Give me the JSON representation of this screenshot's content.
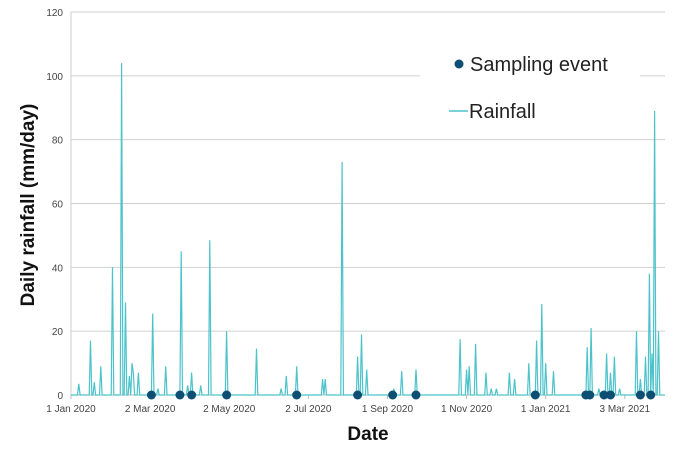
{
  "chart_data": {
    "type": "line",
    "xlabel": "Date",
    "ylabel": "Daily rainfall (mm/day)",
    "xlim": [
      "2020-01-01",
      "2021-04-03"
    ],
    "ylim": [
      0,
      120
    ],
    "y_ticks": [
      0,
      20,
      40,
      60,
      80,
      100,
      120
    ],
    "x_ticks": [
      {
        "date": "2020-01-01",
        "label": "1 Jan 2020"
      },
      {
        "date": "2020-03-02",
        "label": "2 Mar 2020"
      },
      {
        "date": "2020-05-02",
        "label": "2 May 2020"
      },
      {
        "date": "2020-07-02",
        "label": "2 Jul 2020"
      },
      {
        "date": "2020-09-01",
        "label": "1 Sep 2020"
      },
      {
        "date": "2020-11-01",
        "label": "1 Nov 2020"
      },
      {
        "date": "2021-01-01",
        "label": "1 Jan 2021"
      },
      {
        "date": "2021-03-03",
        "label": "3 Mar 2021"
      }
    ],
    "grid": "horizontal",
    "legend_position": "top-right",
    "series": [
      {
        "name": "Rainfall",
        "kind": "line",
        "color": "#4cc3cb",
        "points": [
          [
            "2020-01-07",
            3.5
          ],
          [
            "2020-01-16",
            17
          ],
          [
            "2020-01-19",
            4
          ],
          [
            "2020-01-24",
            9
          ],
          [
            "2020-02-02",
            40
          ],
          [
            "2020-02-09",
            104
          ],
          [
            "2020-02-12",
            29
          ],
          [
            "2020-02-15",
            6
          ],
          [
            "2020-02-17",
            10
          ],
          [
            "2020-02-18",
            7
          ],
          [
            "2020-02-22",
            7
          ],
          [
            "2020-03-04",
            25.5
          ],
          [
            "2020-03-08",
            2
          ],
          [
            "2020-03-14",
            9
          ],
          [
            "2020-03-26",
            45
          ],
          [
            "2020-03-31",
            3
          ],
          [
            "2020-04-03",
            7
          ],
          [
            "2020-04-10",
            3
          ],
          [
            "2020-04-17",
            48.5
          ],
          [
            "2020-04-30",
            20
          ],
          [
            "2020-05-23",
            14.5
          ],
          [
            "2020-06-11",
            2
          ],
          [
            "2020-06-15",
            6
          ],
          [
            "2020-06-23",
            9
          ],
          [
            "2020-07-13",
            5
          ],
          [
            "2020-07-15",
            5
          ],
          [
            "2020-07-28",
            73
          ],
          [
            "2020-08-09",
            12
          ],
          [
            "2020-08-12",
            19
          ],
          [
            "2020-08-16",
            8
          ],
          [
            "2020-09-06",
            2
          ],
          [
            "2020-09-12",
            7.5
          ],
          [
            "2020-09-23",
            8
          ],
          [
            "2020-10-27",
            17.5
          ],
          [
            "2020-11-01",
            8
          ],
          [
            "2020-11-03",
            9
          ],
          [
            "2020-11-08",
            16
          ],
          [
            "2020-11-16",
            7
          ],
          [
            "2020-11-20",
            2
          ],
          [
            "2020-11-24",
            2
          ],
          [
            "2020-12-04",
            7
          ],
          [
            "2020-12-08",
            5
          ],
          [
            "2020-12-19",
            10
          ],
          [
            "2020-12-25",
            17
          ],
          [
            "2020-12-29",
            28.5
          ],
          [
            "2021-01-01",
            10
          ],
          [
            "2021-01-07",
            7.5
          ],
          [
            "2021-02-02",
            15
          ],
          [
            "2021-02-05",
            21
          ],
          [
            "2021-02-11",
            2
          ],
          [
            "2021-02-17",
            13
          ],
          [
            "2021-02-20",
            7
          ],
          [
            "2021-02-23",
            12
          ],
          [
            "2021-02-27",
            2
          ],
          [
            "2021-03-12",
            20
          ],
          [
            "2021-03-15",
            5
          ],
          [
            "2021-03-19",
            12
          ],
          [
            "2021-03-22",
            38
          ],
          [
            "2021-03-24",
            13
          ],
          [
            "2021-03-26",
            89
          ],
          [
            "2021-03-29",
            20
          ]
        ]
      },
      {
        "name": "Sampling event",
        "kind": "scatter",
        "color": "#0d4f72",
        "dates": [
          "2020-03-03",
          "2020-03-25",
          "2020-04-03",
          "2020-04-30",
          "2020-06-23",
          "2020-08-09",
          "2020-09-05",
          "2020-09-23",
          "2020-12-24",
          "2021-02-01",
          "2021-02-04",
          "2021-02-15",
          "2021-02-20",
          "2021-03-15",
          "2021-03-23"
        ],
        "value": 0
      }
    ]
  }
}
